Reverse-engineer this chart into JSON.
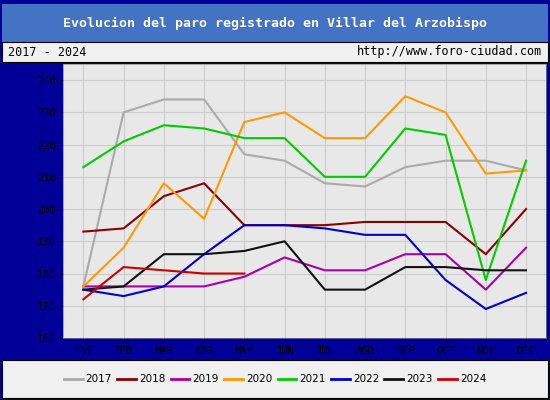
{
  "title": "Evolucion del paro registrado en Villar del Arzobispo",
  "subtitle_left": "2017 - 2024",
  "subtitle_right": "http://www.foro-ciudad.com",
  "xlabel_ticks": [
    "ENE",
    "FEB",
    "MAR",
    "ABR",
    "MAY",
    "JUN",
    "JUL",
    "AGO",
    "SEP",
    "OCT",
    "NOV",
    "DIC"
  ],
  "ylim": [
    160,
    245
  ],
  "yticks": [
    160,
    170,
    180,
    190,
    200,
    210,
    220,
    230,
    240
  ],
  "series": {
    "2017": {
      "color": "#aaaaaa",
      "values": [
        176,
        230,
        234,
        234,
        217,
        215,
        208,
        207,
        213,
        215,
        215,
        212
      ]
    },
    "2018": {
      "color": "#8b0000",
      "values": [
        193,
        194,
        204,
        208,
        195,
        195,
        195,
        196,
        196,
        196,
        186,
        200
      ]
    },
    "2019": {
      "color": "#aa00aa",
      "values": [
        176,
        176,
        176,
        176,
        179,
        185,
        181,
        181,
        186,
        186,
        175,
        188
      ]
    },
    "2020": {
      "color": "#ff9900",
      "values": [
        176,
        188,
        208,
        197,
        227,
        230,
        222,
        222,
        235,
        230,
        211,
        212
      ]
    },
    "2021": {
      "color": "#00cc00",
      "values": [
        213,
        221,
        226,
        225,
        222,
        222,
        210,
        210,
        225,
        223,
        178,
        215
      ]
    },
    "2022": {
      "color": "#0000cc",
      "values": [
        175,
        173,
        176,
        186,
        195,
        195,
        194,
        192,
        192,
        178,
        169,
        174
      ]
    },
    "2023": {
      "color": "#111111",
      "values": [
        175,
        176,
        186,
        186,
        187,
        190,
        175,
        175,
        182,
        182,
        181,
        181
      ]
    },
    "2024": {
      "color": "#cc0000",
      "values": [
        172,
        182,
        181,
        180,
        180,
        null,
        null,
        null,
        null,
        null,
        null,
        null
      ]
    }
  },
  "title_bg": "#4472c4",
  "title_color": "#ffffff",
  "plot_bg": "#e8e8e8",
  "grid_color": "#cccccc",
  "border_color": "#000099"
}
